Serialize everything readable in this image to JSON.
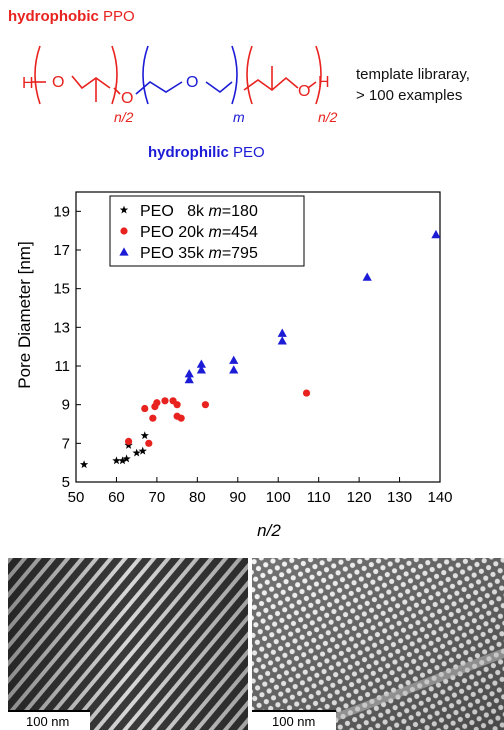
{
  "header": {
    "phobic_bold": "hydrophobic",
    "phobic_rest": " PPO",
    "philic_bold": "hydrophilic",
    "philic_rest": " PEO",
    "template_line1": "template libraray,",
    "template_line2": "> 100 examples"
  },
  "structure": {
    "h_left": "H",
    "o1": "O",
    "o2": "O",
    "o3": "O",
    "o4": "O",
    "h_right": "H",
    "sub1": "n/2",
    "sub2": "m",
    "sub3": "n/2"
  },
  "colors": {
    "ppo": "#e8231f",
    "peo": "#1c1cd6",
    "k": "#000000"
  },
  "chart_data": {
    "type": "scatter",
    "xlabel": "n/2",
    "ylabel": "Pore Diameter [nm]",
    "xlim": [
      50,
      140
    ],
    "ylim": [
      5,
      20
    ],
    "xticks": [
      50,
      60,
      70,
      80,
      90,
      100,
      110,
      120,
      130,
      140
    ],
    "yticks": [
      5,
      7,
      9,
      11,
      13,
      15,
      17,
      19
    ],
    "legend_position": "top-left",
    "grid": false,
    "series": [
      {
        "name": "PEO   8k m=180",
        "legend_prefix": "PEO   8k ",
        "legend_m": "m",
        "legend_suffix": "=180",
        "marker": "star",
        "color": "#000000",
        "points": [
          [
            52,
            5.9
          ],
          [
            60,
            6.1
          ],
          [
            61.5,
            6.1
          ],
          [
            62.5,
            6.2
          ],
          [
            63,
            6.9
          ],
          [
            65,
            6.5
          ],
          [
            66.5,
            6.6
          ],
          [
            67,
            7.4
          ]
        ]
      },
      {
        "name": "PEO 20k m=454",
        "legend_prefix": "PEO 20k ",
        "legend_m": "m",
        "legend_suffix": "=454",
        "marker": "circle",
        "color": "#e8231f",
        "points": [
          [
            63,
            7.1
          ],
          [
            67,
            8.8
          ],
          [
            68,
            7.0
          ],
          [
            69,
            8.3
          ],
          [
            69.5,
            8.9
          ],
          [
            70,
            9.1
          ],
          [
            72,
            9.2
          ],
          [
            74,
            9.2
          ],
          [
            75,
            8.4
          ],
          [
            75,
            9.0
          ],
          [
            76,
            8.3
          ],
          [
            82,
            9.0
          ],
          [
            107,
            9.6
          ]
        ]
      },
      {
        "name": "PEO 35k m=795",
        "legend_prefix": "PEO 35k ",
        "legend_m": "m",
        "legend_suffix": "=795",
        "marker": "triangle",
        "color": "#1c1cd6",
        "points": [
          [
            78,
            10.3
          ],
          [
            78,
            10.6
          ],
          [
            81,
            10.8
          ],
          [
            81,
            11.1
          ],
          [
            89,
            10.8
          ],
          [
            89,
            11.3
          ],
          [
            101,
            12.3
          ],
          [
            101,
            12.7
          ],
          [
            122,
            15.6
          ],
          [
            139,
            17.8
          ]
        ]
      }
    ]
  },
  "images": {
    "left_scale": "100 nm",
    "right_scale": "100 nm"
  }
}
